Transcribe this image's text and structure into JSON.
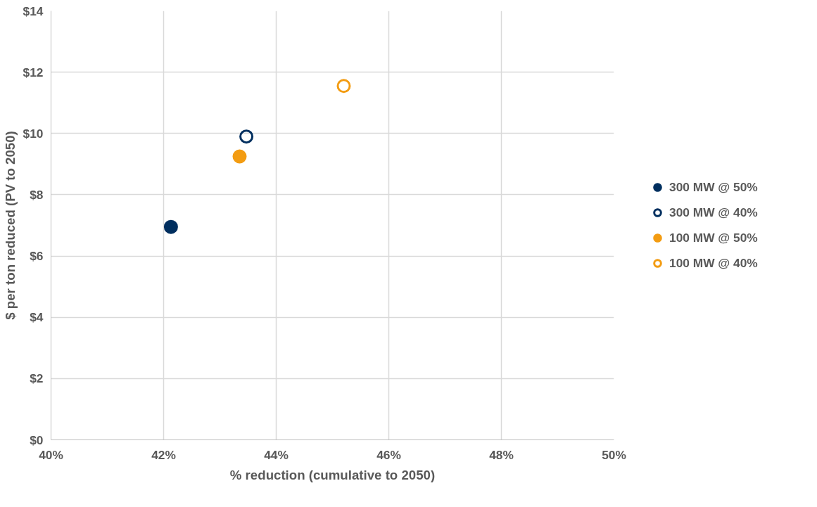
{
  "chart_data": {
    "type": "scatter",
    "xlabel": "% reduction (cumulative to 2050)",
    "ylabel": "$ per ton reduced (PV to 2050)",
    "series": [
      {
        "name": "300 MW @ 50%",
        "color": "#002f5f",
        "x": [
          42.13
        ],
        "values": [
          6.95
        ],
        "marker": "circle"
      },
      {
        "name": "300 MW @ 40%",
        "color": "#002f5f",
        "x": [
          43.47
        ],
        "values": [
          9.9
        ],
        "marker": "circle_open"
      },
      {
        "name": "100 MW @ 50%",
        "color": "#f39c12",
        "x": [
          43.35
        ],
        "values": [
          9.25
        ],
        "marker": "circle"
      },
      {
        "name": "100 MW @ 40%",
        "color": "#f39c12",
        "x": [
          45.2
        ],
        "values": [
          11.55
        ],
        "marker": "circle_open"
      }
    ],
    "xlim": [
      40,
      50
    ],
    "ylim": [
      0,
      14
    ],
    "xticks": [
      {
        "value": 40,
        "label": "40%"
      },
      {
        "value": 42,
        "label": "42%"
      },
      {
        "value": 44,
        "label": "44%"
      },
      {
        "value": 46,
        "label": "46%"
      },
      {
        "value": 48,
        "label": "48%"
      },
      {
        "value": 50,
        "label": "50%"
      }
    ],
    "yticks": [
      {
        "value": 0,
        "label": "$0"
      },
      {
        "value": 2,
        "label": "$2"
      },
      {
        "value": 4,
        "label": "$4"
      },
      {
        "value": 6,
        "label": "$6"
      },
      {
        "value": 8,
        "label": "$8"
      },
      {
        "value": 10,
        "label": "$10"
      },
      {
        "value": 12,
        "label": "$12"
      },
      {
        "value": 14,
        "label": "$14"
      }
    ],
    "grid": true,
    "legend": "right"
  }
}
